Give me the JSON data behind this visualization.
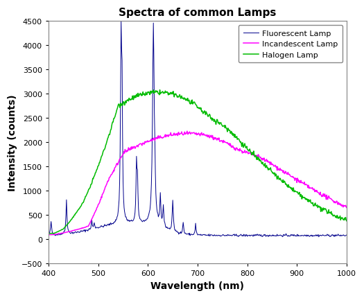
{
  "title": "Spectra of common Lamps",
  "xlabel": "Wavelength (nm)",
  "ylabel": "Intensity (counts)",
  "xlim": [
    400,
    1000
  ],
  "ylim": [
    -500,
    4500
  ],
  "yticks": [
    -500,
    0,
    500,
    1000,
    1500,
    2000,
    2500,
    3000,
    3500,
    4000,
    4500
  ],
  "xticks": [
    400,
    500,
    600,
    700,
    800,
    900,
    1000
  ],
  "background_color": "#ffffff",
  "plot_bg_color": "#ffffff",
  "border_color": "#808080",
  "fluorescent_color": "#00008B",
  "incandescent_color": "#FF00FF",
  "halogen_color": "#00BB00",
  "legend_labels": [
    "Fluorescent Lamp",
    "Incandescent Lamp",
    "Halogen Lamp"
  ],
  "title_fontsize": 11,
  "axis_label_fontsize": 10,
  "tick_fontsize": 8,
  "legend_fontsize": 8
}
